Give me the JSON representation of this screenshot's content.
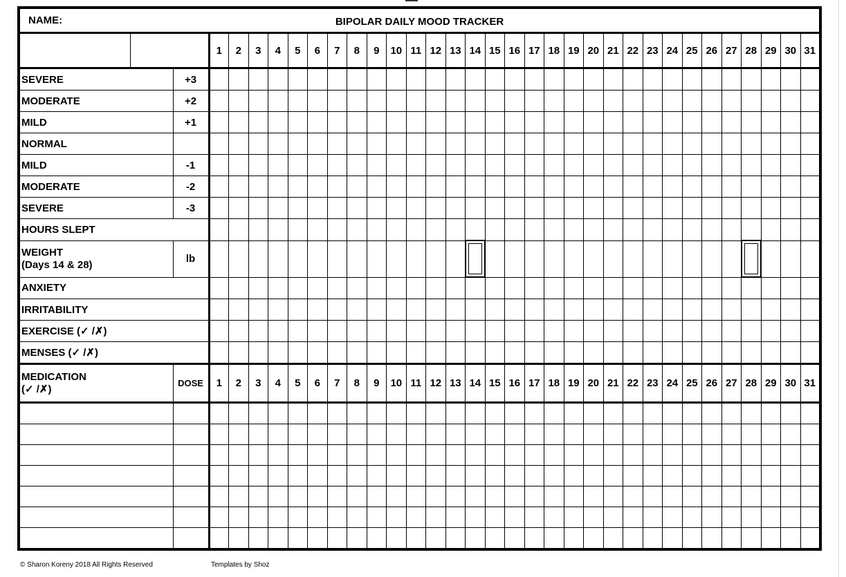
{
  "title": "BIPOLAR DAILY MOOD TRACKER",
  "name_label": "NAME:",
  "days": [
    "1",
    "2",
    "3",
    "4",
    "5",
    "6",
    "7",
    "8",
    "9",
    "10",
    "11",
    "12",
    "13",
    "14",
    "15",
    "16",
    "17",
    "18",
    "19",
    "20",
    "21",
    "22",
    "23",
    "24",
    "25",
    "26",
    "27",
    "28",
    "29",
    "30",
    "31"
  ],
  "rows": [
    {
      "label": "SEVERE",
      "value": "+3"
    },
    {
      "label": "MODERATE",
      "value": "+2"
    },
    {
      "label": "MILD",
      "value": "+1"
    },
    {
      "label": "NORMAL",
      "value": ""
    },
    {
      "label": "MILD",
      "value": "-1"
    },
    {
      "label": "MODERATE",
      "value": "-2"
    },
    {
      "label": "SEVERE",
      "value": "-3"
    },
    {
      "label": "HOURS SLEPT"
    },
    {
      "label": "WEIGHT",
      "sublabel": "(Days 14 & 28)",
      "value": "lb",
      "highlight_days": [
        14,
        28
      ]
    },
    {
      "label": "ANXIETY"
    },
    {
      "label": "IRRITABILITY"
    },
    {
      "label": "EXERCISE (✓ /✗)"
    },
    {
      "label": "MENSES (✓ /✗)"
    }
  ],
  "medication": {
    "label": "MEDICATION",
    "sublabel": "(✓ /✗)",
    "dose_label": "DOSE",
    "blank_rows": 7
  },
  "footer": {
    "copyright": "© Sharon Koreny 2018  All Rights Reserved",
    "credit": "Templates by Shoz"
  }
}
